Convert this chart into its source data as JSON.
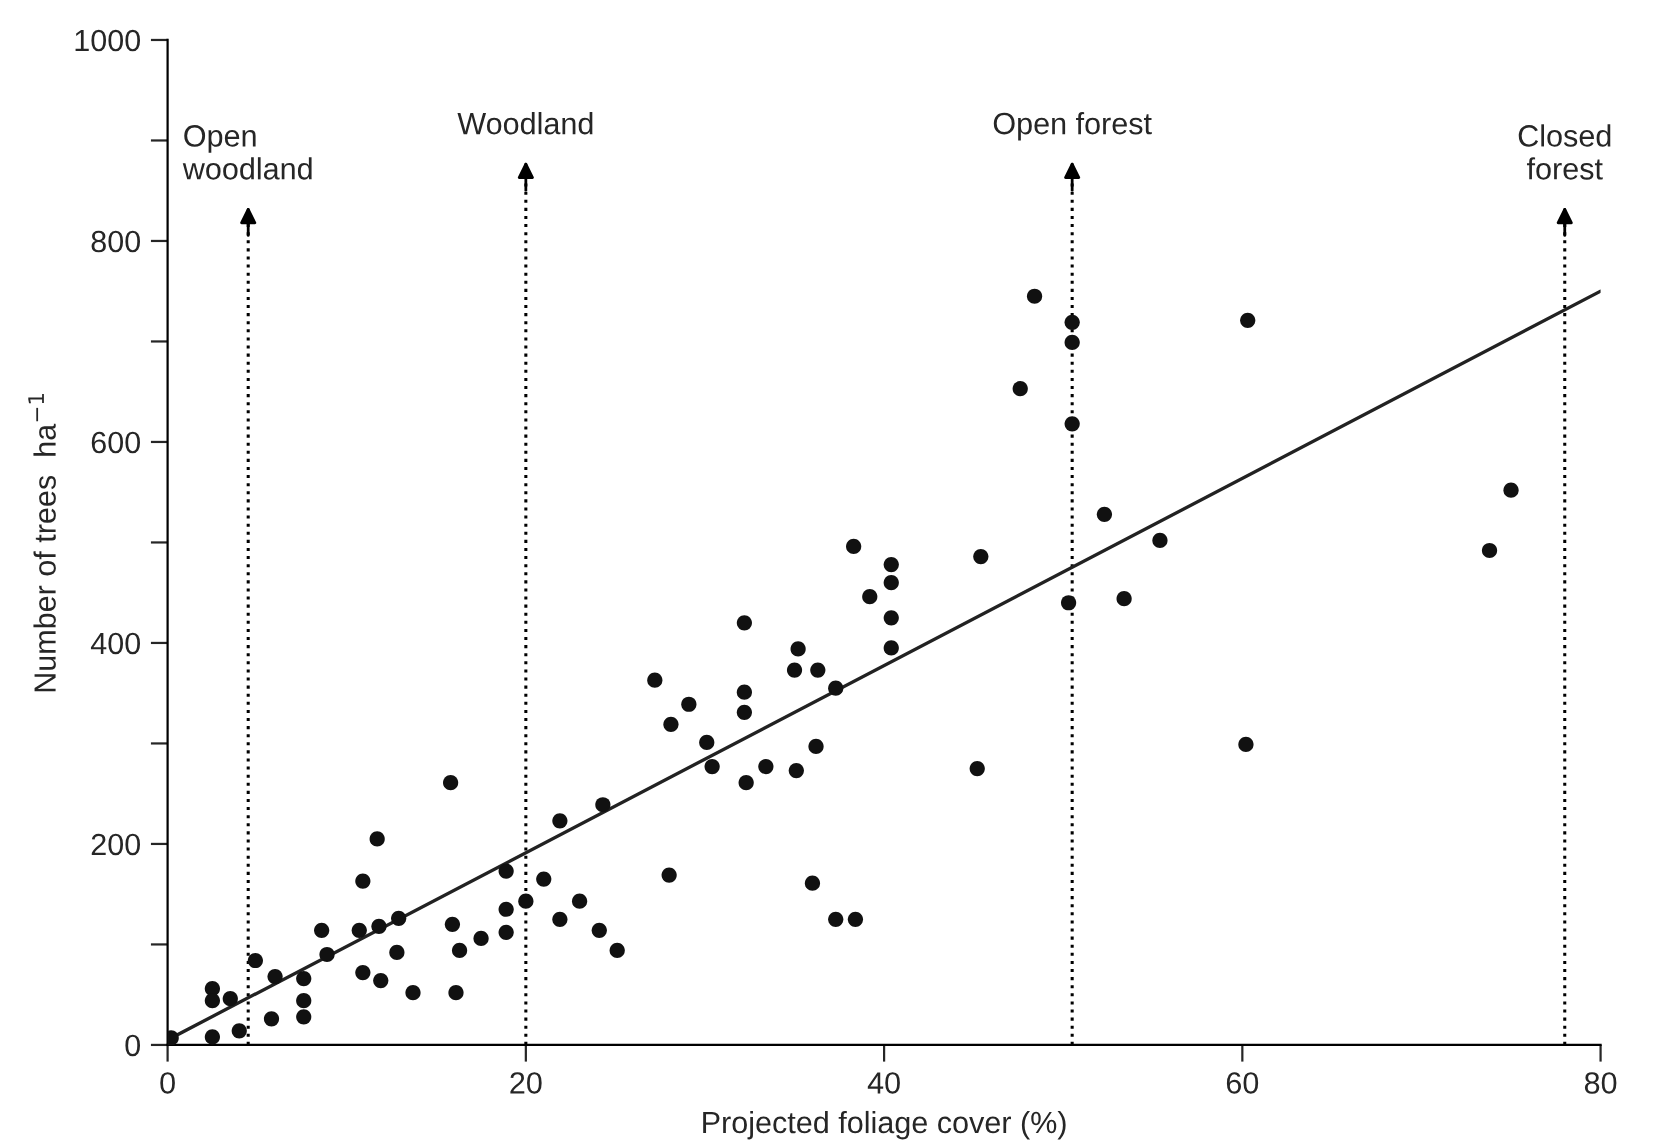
{
  "chart_data": {
    "type": "scatter",
    "xlabel": "Projected foliage cover (%)",
    "ylabel": "Number of trees  ha$^{−1}$",
    "xlim": [
      0,
      80
    ],
    "xticks": [
      0,
      20,
      40,
      60,
      80
    ],
    "ylim": [
      0,
      1000
    ],
    "yticks": [
      0,
      {
        "value": 100,
        "label": null
      },
      200,
      {
        "value": 300,
        "label": null
      },
      400,
      {
        "value": 500,
        "label": null
      },
      600,
      {
        "value": 700,
        "label": null
      },
      800,
      {
        "value": 900,
        "label": null
      },
      1000
    ],
    "grid": false,
    "marker": "circle",
    "series": [
      {
        "color": "#111111",
        "x": [
          0.2,
          2.5,
          2.5,
          2.5,
          3.5,
          4,
          4.9,
          5.8,
          6,
          7.6,
          7.6,
          7.6,
          8.6,
          8.9,
          10.7,
          10.9,
          10.9,
          11.7,
          11.8,
          11.9,
          12.9,
          12.8,
          13.7,
          15.8,
          15.9,
          16.1,
          16.3,
          17.5,
          18.9,
          18.9,
          18.9,
          20,
          21,
          21.9,
          21.9,
          23,
          24.1,
          24.3,
          25.1,
          27.2,
          28.1,
          29.1,
          28,
          30.1,
          30.4,
          32.2,
          32.2,
          32.2,
          32.3,
          33.4,
          35.1,
          35.2,
          35,
          36.3,
          36.2,
          37.3,
          36,
          37.3,
          38.4,
          38.3,
          39.2,
          40.4,
          40.4,
          40.4,
          40.4,
          45.4,
          45.2,
          50.3,
          48.4,
          47.6,
          50.5,
          50.5,
          50.5,
          60.3,
          52.3,
          55.4,
          53.4,
          60.2,
          75,
          73.8
        ],
        "values": [
          7,
          56,
          44,
          8,
          46,
          14,
          84,
          26,
          68,
          66,
          44,
          28,
          114,
          90,
          114,
          163,
          72,
          205,
          118,
          64,
          126,
          92,
          52,
          261,
          120,
          52,
          94,
          106,
          173,
          135,
          112,
          143,
          165,
          223,
          125,
          143,
          114,
          239,
          94,
          363,
          319,
          339,
          169,
          301,
          277,
          420,
          351,
          331,
          261,
          277,
          273,
          394,
          373,
          373,
          297,
          355,
          161,
          125,
          125,
          496,
          446,
          478,
          460,
          425,
          395,
          486,
          275,
          440,
          745,
          653,
          719,
          699,
          618,
          721,
          528,
          502,
          444,
          299,
          552,
          492
        ]
      },
      {
        "type": "line",
        "color": "#222222",
        "marker": "none",
        "line_style": "solid",
        "x": [
          0,
          80
        ],
        "values": [
          5,
          750
        ]
      }
    ],
    "ref_lines": [
      {
        "axis": "x",
        "value": 4.5,
        "label": "Open\nwoodland",
        "line_style": "dotted"
      },
      {
        "axis": "x",
        "value": 20,
        "label": "Woodland",
        "line_style": "dotted"
      },
      {
        "axis": "x",
        "value": 50.5,
        "label": "Open forest",
        "line_style": "dotted"
      },
      {
        "axis": "x",
        "value": 78,
        "label": "Closed\nforest",
        "line_style": "dotted"
      }
    ]
  }
}
